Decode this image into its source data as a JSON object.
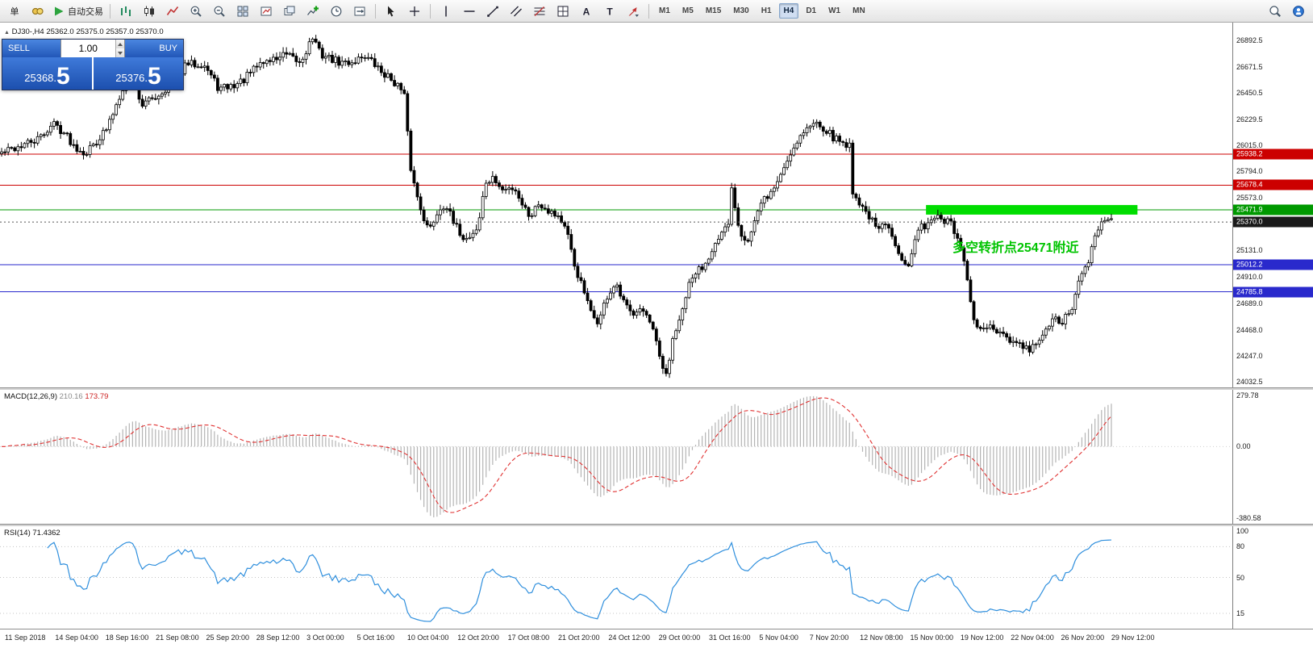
{
  "toolbar": {
    "order_button_label": "单",
    "autotrade_label": "自动交易",
    "timeframes": [
      "M1",
      "M5",
      "M15",
      "M30",
      "H1",
      "H4",
      "D1",
      "W1",
      "MN"
    ],
    "active_timeframe": "H4",
    "chart_icons": [
      "bars-chart",
      "candles-chart",
      "line-chart",
      "zoom-in",
      "zoom-out",
      "tile-windows",
      "new-chart",
      "window-layout",
      "indicators-add",
      "cycles",
      "chart-shift"
    ],
    "cursor_icons": [
      "cursor",
      "crosshair"
    ],
    "draw_icons": [
      "vline",
      "hline",
      "trendline",
      "channel",
      "fibonacci",
      "shapes",
      "text",
      "label",
      "arrows"
    ],
    "right_icons": [
      "search",
      "community"
    ]
  },
  "trade_panel": {
    "sell_label": "SELL",
    "buy_label": "BUY",
    "volume": "1.00",
    "sell_price_int": "25368.",
    "sell_price_frac": "5",
    "buy_price_int": "25376.",
    "buy_price_frac": "5"
  },
  "chart": {
    "symbol_line": "DJ30-,H4 25362.0 25375.0 25357.0 25370.0",
    "annotation": "多空转折点25471附近",
    "axis_labels": [
      "26892.5",
      "26671.5",
      "26450.5",
      "26229.5",
      "26015.0",
      "25794.0",
      "25573.0",
      "25131.0",
      "24910.0",
      "24689.0",
      "24468.0",
      "24247.0",
      "24032.5"
    ],
    "price_tags": [
      {
        "text": "25938.2",
        "color": "#cc0000"
      },
      {
        "text": "25678.4",
        "color": "#cc0000"
      },
      {
        "text": "25471.9",
        "color": "#009900"
      },
      {
        "text": "25370.0",
        "color": "#1a1a1a"
      },
      {
        "text": "25012.2",
        "color": "#2929cc"
      },
      {
        "text": "24785.8",
        "color": "#2929cc"
      }
    ]
  },
  "macd": {
    "name": "MACD(12,26,9)",
    "main_value": "210.16",
    "signal_value": "173.79",
    "axis_labels": [
      "279.78",
      "0.00",
      "-380.58"
    ]
  },
  "rsi": {
    "name": "RSI(14)",
    "value": "71.4362",
    "axis_labels": [
      "100",
      "80",
      "50",
      "15"
    ]
  },
  "time_axis": [
    "11 Sep 2018",
    "14 Sep 04:00",
    "18 Sep 16:00",
    "21 Sep 08:00",
    "25 Sep 20:00",
    "28 Sep 12:00",
    "3 Oct 00:00",
    "5 Oct 16:00",
    "10 Oct 04:00",
    "12 Oct 20:00",
    "17 Oct 08:00",
    "21 Oct 20:00",
    "24 Oct 12:00",
    "29 Oct 00:00",
    "31 Oct 16:00",
    "5 Nov 04:00",
    "7 Nov 20:00",
    "12 Nov 08:00",
    "15 Nov 00:00",
    "19 Nov 12:00",
    "22 Nov 04:00",
    "26 Nov 20:00",
    "29 Nov 12:00"
  ],
  "chart_data": {
    "type": "candlestick",
    "symbol": "DJ30-",
    "timeframe": "H4",
    "ohlc_display": {
      "open": "25362.0",
      "high": "25375.0",
      "low": "25357.0",
      "close": "25370.0"
    },
    "num_candles": 340,
    "seed": 42,
    "y_axis": {
      "scale_min": 23985,
      "scale_max": 27040
    },
    "anchors": [
      [
        0.0,
        25950
      ],
      [
        0.015,
        26000
      ],
      [
        0.033,
        26060
      ],
      [
        0.047,
        26200
      ],
      [
        0.058,
        26100
      ],
      [
        0.065,
        26010
      ],
      [
        0.076,
        25950
      ],
      [
        0.095,
        26150
      ],
      [
        0.109,
        26500
      ],
      [
        0.118,
        26550
      ],
      [
        0.127,
        26350
      ],
      [
        0.145,
        26460
      ],
      [
        0.167,
        26690
      ],
      [
        0.182,
        26700
      ],
      [
        0.196,
        26480
      ],
      [
        0.211,
        26520
      ],
      [
        0.218,
        26560
      ],
      [
        0.233,
        26700
      ],
      [
        0.247,
        26740
      ],
      [
        0.255,
        26770
      ],
      [
        0.269,
        26700
      ],
      [
        0.28,
        26920
      ],
      [
        0.287,
        26780
      ],
      [
        0.305,
        26700
      ],
      [
        0.316,
        26710
      ],
      [
        0.327,
        26770
      ],
      [
        0.342,
        26630
      ],
      [
        0.356,
        26530
      ],
      [
        0.364,
        26400
      ],
      [
        0.367,
        25900
      ],
      [
        0.373,
        25630
      ],
      [
        0.378,
        25480
      ],
      [
        0.385,
        25290
      ],
      [
        0.393,
        25460
      ],
      [
        0.4,
        25530
      ],
      [
        0.407,
        25355
      ],
      [
        0.418,
        25220
      ],
      [
        0.429,
        25320
      ],
      [
        0.436,
        25700
      ],
      [
        0.444,
        25730
      ],
      [
        0.451,
        25630
      ],
      [
        0.462,
        25664
      ],
      [
        0.469,
        25525
      ],
      [
        0.476,
        25420
      ],
      [
        0.484,
        25530
      ],
      [
        0.495,
        25460
      ],
      [
        0.502,
        25420
      ],
      [
        0.509,
        25290
      ],
      [
        0.516,
        25010
      ],
      [
        0.524,
        24805
      ],
      [
        0.531,
        24600
      ],
      [
        0.538,
        24530
      ],
      [
        0.545,
        24735
      ],
      [
        0.553,
        24840
      ],
      [
        0.56,
        24700
      ],
      [
        0.567,
        24600
      ],
      [
        0.575,
        24670
      ],
      [
        0.582,
        24565
      ],
      [
        0.589,
        24390
      ],
      [
        0.596,
        24115
      ],
      [
        0.6,
        24060
      ],
      [
        0.604,
        24390
      ],
      [
        0.611,
        24530
      ],
      [
        0.618,
        24805
      ],
      [
        0.625,
        24943
      ],
      [
        0.633,
        25010
      ],
      [
        0.64,
        25150
      ],
      [
        0.647,
        25220
      ],
      [
        0.655,
        25355
      ],
      [
        0.658,
        25660
      ],
      [
        0.665,
        25290
      ],
      [
        0.673,
        25220
      ],
      [
        0.68,
        25420
      ],
      [
        0.687,
        25560
      ],
      [
        0.695,
        25630
      ],
      [
        0.702,
        25770
      ],
      [
        0.709,
        25905
      ],
      [
        0.716,
        26045
      ],
      [
        0.724,
        26150
      ],
      [
        0.731,
        26180
      ],
      [
        0.735,
        26215
      ],
      [
        0.742,
        26150
      ],
      [
        0.749,
        26080
      ],
      [
        0.756,
        26045
      ],
      [
        0.764,
        26010
      ],
      [
        0.767,
        25630
      ],
      [
        0.775,
        25495
      ],
      [
        0.782,
        25420
      ],
      [
        0.789,
        25290
      ],
      [
        0.796,
        25355
      ],
      [
        0.804,
        25220
      ],
      [
        0.811,
        25080
      ],
      [
        0.818,
        25010
      ],
      [
        0.825,
        25290
      ],
      [
        0.833,
        25355
      ],
      [
        0.84,
        25420
      ],
      [
        0.847,
        25390
      ],
      [
        0.855,
        25355
      ],
      [
        0.862,
        25220
      ],
      [
        0.869,
        24943
      ],
      [
        0.876,
        24530
      ],
      [
        0.884,
        24460
      ],
      [
        0.891,
        24495
      ],
      [
        0.898,
        24425
      ],
      [
        0.905,
        24390
      ],
      [
        0.913,
        24355
      ],
      [
        0.92,
        24320
      ],
      [
        0.927,
        24290
      ],
      [
        0.935,
        24390
      ],
      [
        0.942,
        24460
      ],
      [
        0.949,
        24565
      ],
      [
        0.956,
        24530
      ],
      [
        0.964,
        24633
      ],
      [
        0.971,
        24874
      ],
      [
        0.978,
        25010
      ],
      [
        0.985,
        25220
      ],
      [
        0.993,
        25420
      ],
      [
        1.0,
        25370
      ]
    ],
    "levels": [
      {
        "price": 25938.2,
        "color": "#cc0000"
      },
      {
        "price": 25678.4,
        "color": "#cc0000"
      },
      {
        "price": 25471.9,
        "color": "#009900"
      },
      {
        "price": 25370.0,
        "color": "#555555",
        "style": "current"
      },
      {
        "price": 25012.2,
        "color": "#2929cc"
      },
      {
        "price": 24785.8,
        "color": "#2929cc"
      }
    ],
    "zone": {
      "price_top": 25512,
      "price_bottom": 25432,
      "start_frac": 0.832,
      "end_frac": 1.022,
      "color": "#00dd00"
    },
    "annotation_pos": {
      "x_frac": 0.856,
      "price": 25250
    },
    "indicators": [
      {
        "type": "MACD",
        "params": [
          12,
          26,
          9
        ],
        "values": [
          210.16,
          173.79
        ],
        "axis_range": [
          279.78,
          -380.58
        ]
      },
      {
        "type": "RSI",
        "params": [
          14
        ],
        "value": 71.4362,
        "levels": [
          80,
          50,
          15
        ],
        "range": [
          0,
          100
        ]
      }
    ]
  }
}
